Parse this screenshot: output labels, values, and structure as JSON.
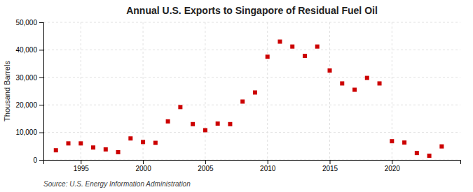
{
  "chart_data": {
    "type": "scatter",
    "title": "Annual U.S. Exports to Singapore of Residual Fuel Oil",
    "y_label": "Thousand Barrels",
    "annotations": [
      "Source: U.S. Energy Information Administration"
    ],
    "x": [
      1993,
      1994,
      1995,
      1996,
      1997,
      1998,
      1999,
      2000,
      2001,
      2002,
      2003,
      2004,
      2005,
      2006,
      2007,
      2008,
      2009,
      2010,
      2011,
      2012,
      2013,
      2014,
      2015,
      2016,
      2017,
      2018,
      2019,
      2020,
      2021,
      2022,
      2023,
      2024
    ],
    "values": [
      3500,
      6000,
      6000,
      4500,
      3800,
      2800,
      7800,
      6500,
      6200,
      14000,
      19200,
      13000,
      10800,
      13200,
      13000,
      21200,
      24500,
      37500,
      43000,
      41200,
      37800,
      41200,
      32500,
      27800,
      25500,
      29800,
      27800,
      6800,
      6300,
      2500,
      1500,
      4900
    ],
    "color": "#cc0000",
    "marker": "square",
    "xlim": [
      1992.0,
      2025.5
    ],
    "xticks": [
      1995,
      2000,
      2005,
      2010,
      2015,
      2020
    ],
    "ylim": [
      0,
      50000
    ],
    "yticks": [
      0,
      {
        "value": 10000,
        "label": "10,000"
      },
      {
        "value": 20000,
        "label": "20,000"
      },
      {
        "value": 30000,
        "label": "30,000"
      },
      {
        "value": 40000,
        "label": "40,000"
      },
      {
        "value": 50000,
        "label": "50,000"
      }
    ],
    "grid": true
  }
}
